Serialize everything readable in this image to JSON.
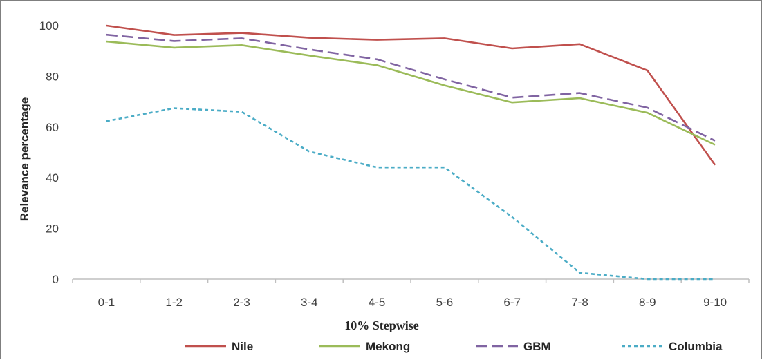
{
  "chart_data": {
    "type": "line",
    "title": "",
    "xlabel": "10% Stepwise",
    "ylabel": "Relevance percentage",
    "categories": [
      "0-1",
      "1-2",
      "2-3",
      "3-4",
      "4-5",
      "5-6",
      "6-7",
      "7-8",
      "8-9",
      "9-10"
    ],
    "ylim": [
      0,
      100
    ],
    "yticks": [
      0,
      20,
      40,
      60,
      80,
      100
    ],
    "grid": false,
    "legend_position": "bottom",
    "series": [
      {
        "name": "Nile",
        "color": "#c0504d",
        "dash": "solid",
        "values": [
          100,
          96.3,
          97.1,
          95.2,
          94.4,
          95.0,
          91.0,
          92.7,
          82.3,
          45.0
        ]
      },
      {
        "name": "Mekong",
        "color": "#9bbb59",
        "dash": "solid",
        "values": [
          93.7,
          91.3,
          92.3,
          88.2,
          84.4,
          76.4,
          69.7,
          71.4,
          65.6,
          53.0
        ]
      },
      {
        "name": "GBM",
        "color": "#8064a2",
        "dash": "long-dash",
        "values": [
          96.4,
          93.9,
          95.0,
          90.6,
          86.7,
          78.8,
          71.6,
          73.4,
          67.6,
          54.6
        ]
      },
      {
        "name": "Columbia",
        "color": "#4bacc6",
        "dash": "dotted",
        "values": [
          62.3,
          67.4,
          66.0,
          50.3,
          44.1,
          44.1,
          24.5,
          2.5,
          0.0,
          0.0
        ]
      }
    ]
  }
}
